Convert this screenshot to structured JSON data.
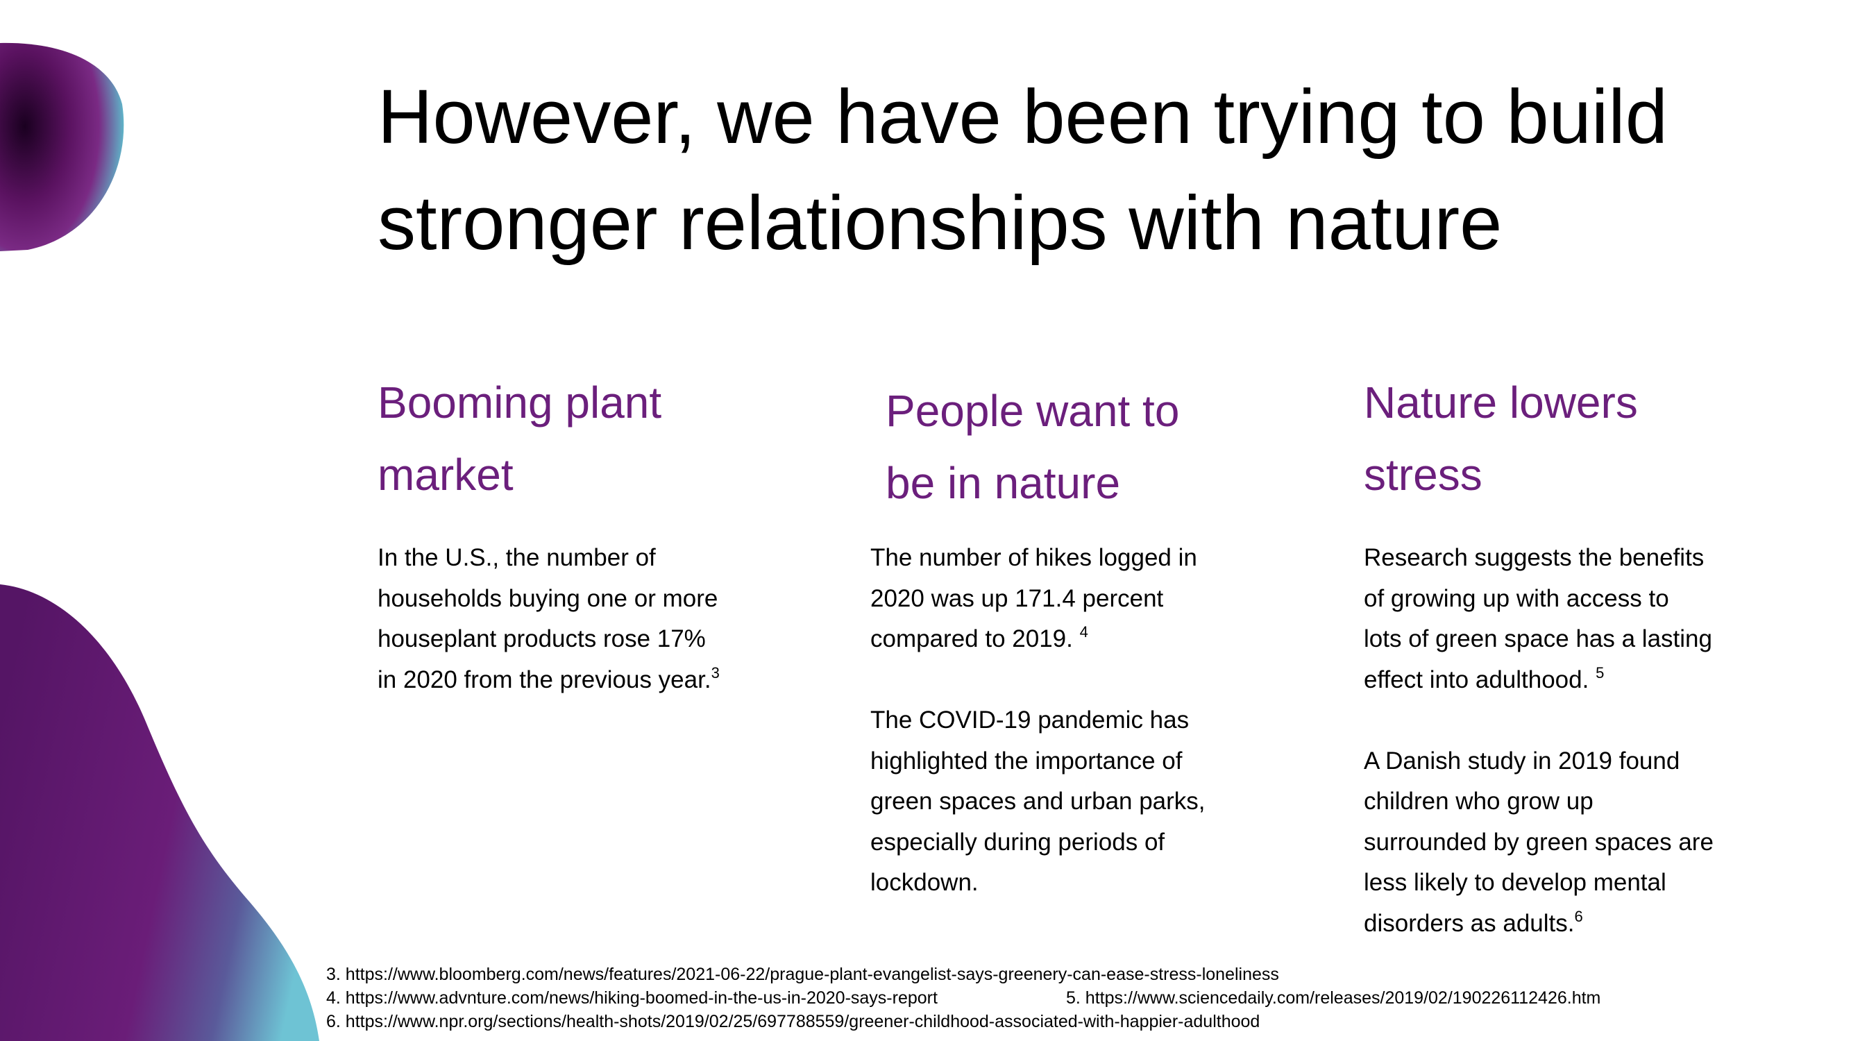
{
  "title": {
    "lines": [
      "However, we have been trying to build",
      "stronger relationships with nature"
    ]
  },
  "columns": [
    {
      "heading": [
        "Booming plant",
        "market"
      ],
      "paragraphs": [
        {
          "lines": [
            "In the U.S., the number of",
            "households buying one or more",
            "houseplant products rose 17%",
            "in 2020 from the previous year."
          ],
          "note": "3"
        }
      ]
    },
    {
      "heading": [
        "People want to",
        "be in nature"
      ],
      "paragraphs": [
        {
          "lines": [
            "The number of hikes logged in",
            "2020 was up 171.4 percent",
            "compared to 2019. "
          ],
          "note": "4"
        },
        {
          "lines": [
            "The COVID-19 pandemic has",
            "highlighted the importance of",
            "green spaces and urban parks,",
            "especially during periods of",
            "lockdown."
          ]
        }
      ]
    },
    {
      "heading": [
        "Nature lowers",
        "stress"
      ],
      "paragraphs": [
        {
          "lines": [
            "Research suggests the benefits",
            "of growing up with access to",
            "lots of green space has a lasting",
            "effect into adulthood. "
          ],
          "note": "5"
        },
        {
          "lines": [
            "A Danish study in 2019 found",
            "children who grow up",
            "surrounded by green spaces are",
            "less likely to develop mental",
            "disorders as adults."
          ],
          "note": "6"
        }
      ]
    }
  ],
  "footnotes": [
    "3. https://www.bloomberg.com/news/features/2021-06-22/prague-plant-evangelist-says-greenery-can-ease-stress-loneliness",
    "4. https://www.advnture.com/news/hiking-boomed-in-the-us-in-2020-says-report",
    "5. https://www.sciencedaily.com/releases/2019/02/190226112426.htm",
    "6. https://www.npr.org/sections/health-shots/2019/02/25/697788559/greener-childhood-associated-with-happier-adulthood"
  ]
}
